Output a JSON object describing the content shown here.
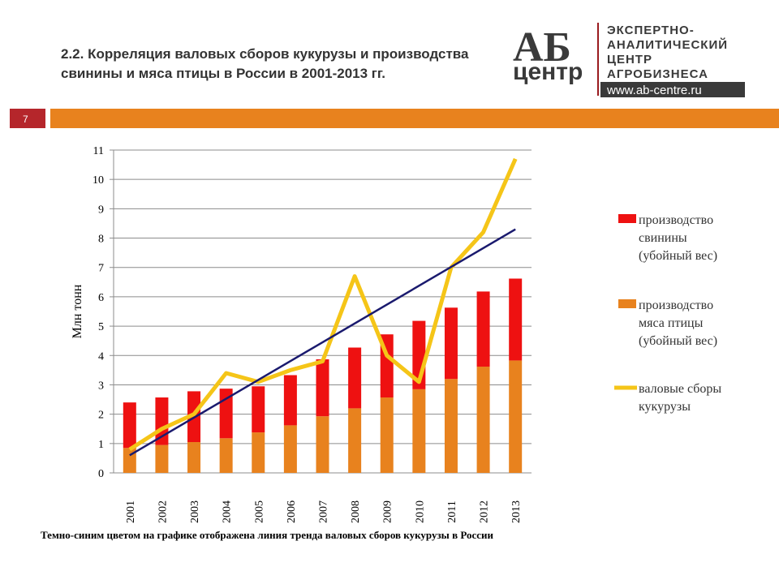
{
  "header": {
    "title_lines": [
      "2.2. Корреляция валовых сборов кукурузы и производства",
      "свинины и мяса птицы в России в 2001-2013 гг."
    ],
    "slide_number": "7"
  },
  "logo": {
    "mark_top": "АБ",
    "mark_bottom": "центр",
    "lines": [
      "ЭКСПЕРТНО-",
      "АНАЛИТИЧЕСКИЙ",
      "ЦЕНТР",
      "АГРОБИЗНЕСА"
    ],
    "url": "www.ab-centre.ru"
  },
  "chart_data": {
    "type": "bar",
    "stacked": true,
    "ylabel": "Млн тонн",
    "categories": [
      "2001",
      "2002",
      "2003",
      "2004",
      "2005",
      "2006",
      "2007",
      "2008",
      "2009",
      "2010",
      "2011",
      "2012",
      "2013"
    ],
    "ylim": [
      0,
      11
    ],
    "yticks": [
      0,
      1,
      2,
      3,
      4,
      5,
      6,
      7,
      8,
      9,
      10,
      11
    ],
    "grid": true,
    "series": [
      {
        "name": "производство\nсвинины\n(убойный вес)",
        "type": "bar",
        "stack_order": 1,
        "color": "#ee1111",
        "values": [
          1.55,
          1.62,
          1.73,
          1.69,
          1.57,
          1.71,
          1.94,
          2.07,
          2.15,
          2.33,
          2.43,
          2.56,
          2.79
        ]
      },
      {
        "name": "производство\nмяса птицы\n(убойный вес)",
        "type": "bar",
        "stack_order": 0,
        "color": "#e8821e",
        "values": [
          0.85,
          0.95,
          1.05,
          1.18,
          1.38,
          1.62,
          1.93,
          2.2,
          2.57,
          2.85,
          3.2,
          3.62,
          3.83
        ]
      },
      {
        "name": "валовые сборы\nкукурузы",
        "type": "line",
        "color": "#f5c518",
        "values": [
          0.8,
          1.5,
          2.0,
          3.4,
          3.1,
          3.5,
          3.8,
          6.7,
          4.0,
          3.1,
          7.0,
          8.2,
          10.7
        ]
      }
    ],
    "trend": {
      "color": "#1a1a6e",
      "values": [
        0.6,
        8.3
      ]
    },
    "footnote": "Темно-синим цветом на графике отображена линия тренда валовых сборов кукурузы в России"
  }
}
